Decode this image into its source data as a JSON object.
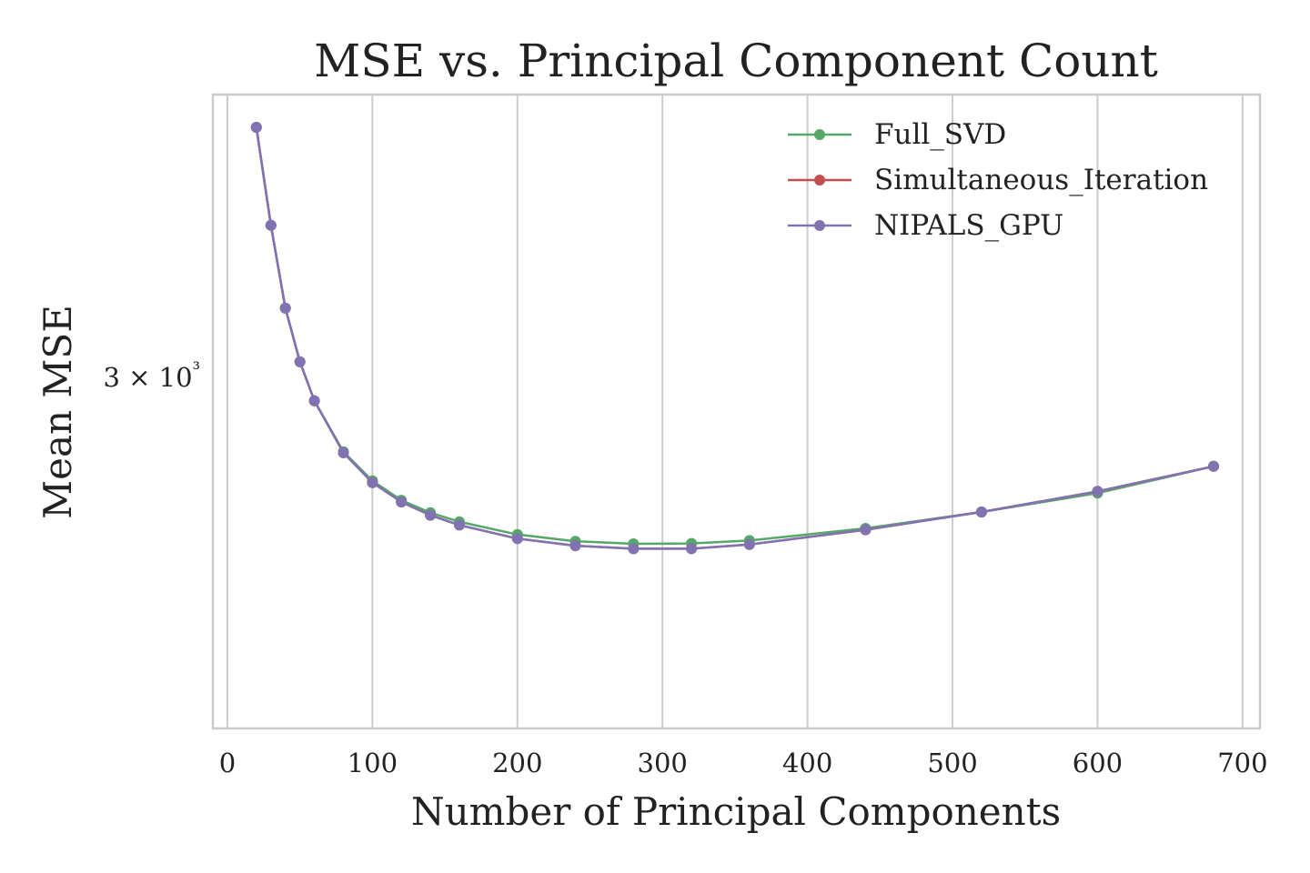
{
  "chart_data": {
    "type": "line",
    "title": "MSE vs. Principal Component Count",
    "xlabel": "Number of Principal Components",
    "ylabel": "Mean MSE",
    "xlim": [
      -10,
      712
    ],
    "x_ticks": [
      0,
      100,
      200,
      300,
      400,
      500,
      600,
      700
    ],
    "y_scale": "log",
    "ylim": [
      2060,
      4060
    ],
    "y_ticks": [
      {
        "value": 3000,
        "label": "3 × 10³"
      }
    ],
    "grid": "vertical",
    "legend_position": "top-right",
    "x": [
      20,
      30,
      40,
      50,
      60,
      80,
      100,
      120,
      140,
      160,
      200,
      240,
      280,
      320,
      360,
      440,
      520,
      600,
      680
    ],
    "series": [
      {
        "name": "Full_SVD",
        "color": "#55a868",
        "values": [
          3920,
          3530,
          3230,
          3050,
          2925,
          2770,
          2685,
          2630,
          2595,
          2570,
          2535,
          2517,
          2510,
          2511,
          2519,
          2552,
          2597,
          2650,
          2727
        ]
      },
      {
        "name": "Simultaneous_Iteration",
        "color": "#c44e52",
        "values": [
          3920,
          3530,
          3230,
          3050,
          2925,
          2767,
          2680,
          2625,
          2588,
          2561,
          2524,
          2505,
          2497,
          2497,
          2508,
          2548,
          2597,
          2655,
          2727
        ]
      },
      {
        "name": "NIPALS_GPU",
        "color": "#8172b2",
        "values": [
          3920,
          3530,
          3230,
          3050,
          2925,
          2767,
          2680,
          2625,
          2588,
          2561,
          2524,
          2505,
          2497,
          2497,
          2508,
          2548,
          2597,
          2655,
          2727
        ]
      }
    ]
  }
}
